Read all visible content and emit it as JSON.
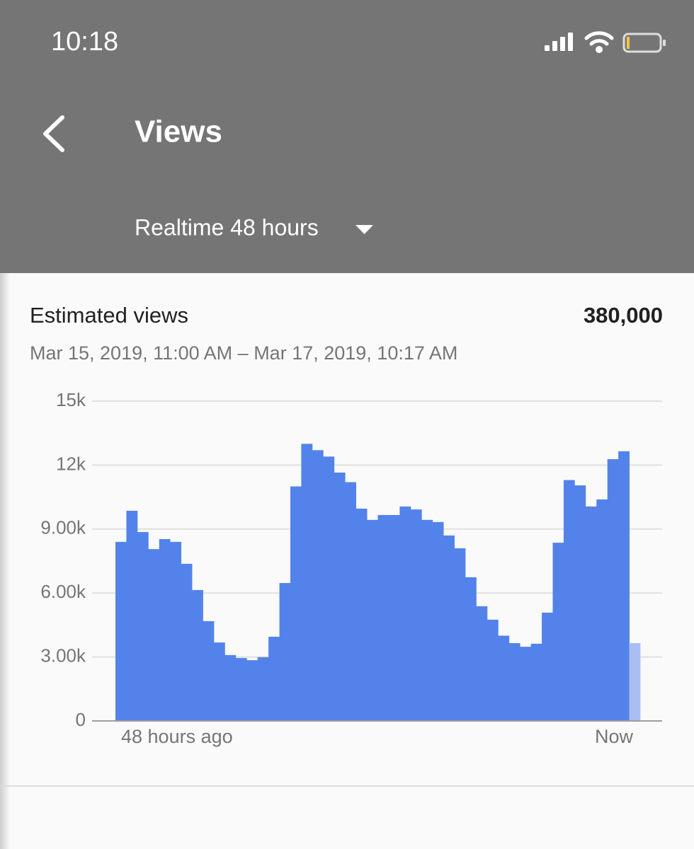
{
  "status_bar": {
    "time": "10:18"
  },
  "header": {
    "title": "Views",
    "period": "Realtime 48 hours"
  },
  "summary": {
    "label": "Estimated views",
    "total": "380,000",
    "range": "Mar 15, 2019, 11:00 AM – Mar 17, 2019, 10:17 AM"
  },
  "chart_data": {
    "type": "bar",
    "categories": [
      "48 hours ago",
      null,
      null,
      null,
      null,
      null,
      null,
      null,
      null,
      null,
      null,
      null,
      null,
      null,
      null,
      null,
      null,
      null,
      null,
      null,
      null,
      null,
      null,
      null,
      null,
      null,
      null,
      null,
      null,
      null,
      null,
      null,
      null,
      null,
      null,
      null,
      null,
      null,
      null,
      null,
      null,
      null,
      null,
      null,
      null,
      null,
      null,
      "Now"
    ],
    "values": [
      8400,
      9860,
      8860,
      8060,
      8530,
      8400,
      7370,
      6140,
      4680,
      3680,
      3090,
      2950,
      2850,
      2990,
      3950,
      6470,
      11000,
      13000,
      12700,
      12400,
      11650,
      11200,
      9960,
      9430,
      9660,
      9660,
      10060,
      9920,
      9430,
      9330,
      8700,
      8100,
      6740,
      5380,
      4750,
      4000,
      3650,
      3480,
      3620,
      5080,
      8360,
      11300,
      11050,
      10060,
      10390,
      12280,
      12650,
      3650
    ],
    "color": "#5383ea",
    "last_color": "#a9bff3",
    "ylim": [
      0,
      15000
    ],
    "yticks": [
      0,
      {
        "value": 3000,
        "label": "3.00k"
      },
      {
        "value": 6000,
        "label": "6.00k"
      },
      {
        "value": 9000,
        "label": "9.00k"
      },
      {
        "value": 12000,
        "label": "12k"
      },
      {
        "value": 15000,
        "label": "15k"
      }
    ],
    "grid": true
  }
}
